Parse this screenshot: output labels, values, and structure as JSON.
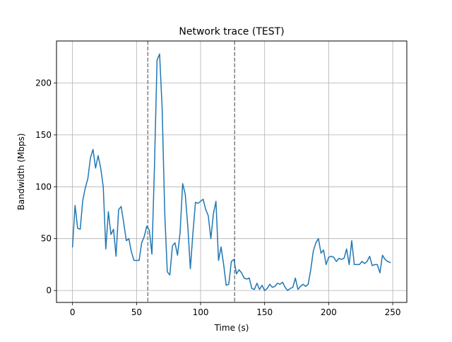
{
  "chart_data": {
    "type": "line",
    "title": "Network trace (TEST)",
    "xlabel": "Time (s)",
    "ylabel": "Bandwidth (Mbps)",
    "xlim": [
      -12.5,
      261
    ],
    "ylim": [
      -11.5,
      240.5
    ],
    "x_ticks": [
      0,
      50,
      100,
      150,
      200,
      250
    ],
    "x_tick_labels": [
      "0",
      "50",
      "100",
      "150",
      "200",
      "250"
    ],
    "y_ticks": [
      0,
      50,
      100,
      150,
      200
    ],
    "y_tick_labels": [
      "0",
      "50",
      "100",
      "150",
      "200"
    ],
    "grid": true,
    "line_color": "#1f77b4",
    "vlines": [
      {
        "x": 58.8,
        "style": "dashed",
        "color": "#7f7f7f"
      },
      {
        "x": 126.6,
        "style": "dashed",
        "color": "#7f7f7f"
      }
    ],
    "series": [
      {
        "x": [
          0,
          2,
          4,
          6,
          8,
          10,
          12,
          14,
          16,
          18,
          20,
          22,
          24,
          26,
          28,
          30,
          32,
          34,
          36,
          38,
          40,
          42,
          44,
          46,
          48,
          50,
          52,
          54,
          56,
          58,
          60,
          62,
          64,
          66,
          68,
          70,
          72,
          74,
          76,
          78,
          80,
          82,
          84,
          86,
          88,
          90,
          92,
          94,
          96,
          98,
          100,
          102,
          104,
          106,
          108,
          110,
          112,
          114,
          116,
          118,
          120,
          122,
          124,
          126,
          128,
          130,
          132,
          134,
          136,
          138,
          140,
          142,
          144,
          146,
          148,
          150,
          152,
          154,
          156,
          158,
          160,
          162,
          164,
          166,
          168,
          170,
          172,
          174,
          176,
          178,
          180,
          182,
          184,
          186,
          188,
          190,
          192,
          194,
          196,
          198,
          200,
          202,
          204,
          206,
          208,
          210,
          212,
          214,
          216,
          218,
          220,
          222,
          224,
          226,
          228,
          230,
          232,
          234,
          236,
          238,
          240,
          242,
          244,
          246,
          248
        ],
        "values": [
          42,
          82,
          60,
          59,
          87,
          99,
          108,
          128,
          136,
          118,
          130,
          118,
          100,
          40,
          76,
          54,
          59,
          33,
          78,
          81,
          65,
          48,
          50,
          37,
          29,
          29,
          29,
          46,
          52,
          62,
          58,
          35,
          120,
          222,
          228,
          175,
          75,
          18,
          15,
          43,
          46,
          34,
          56,
          103,
          93,
          62,
          21,
          55,
          85,
          84,
          86,
          88,
          78,
          72,
          50,
          74,
          86,
          29,
          42,
          25,
          5,
          6,
          28,
          30,
          16,
          20,
          17,
          12,
          11,
          12,
          2,
          1,
          7,
          1,
          5,
          0,
          2,
          6,
          3,
          4,
          7,
          6,
          8,
          3,
          0,
          2,
          3,
          12,
          1,
          4,
          6,
          4,
          6,
          20,
          38,
          46,
          50,
          36,
          39,
          25,
          32,
          33,
          32,
          28,
          31,
          30,
          31,
          40,
          25,
          48,
          25,
          25,
          25,
          28,
          26,
          28,
          33,
          24,
          25,
          25,
          17,
          34,
          30,
          28,
          27
        ]
      }
    ]
  }
}
